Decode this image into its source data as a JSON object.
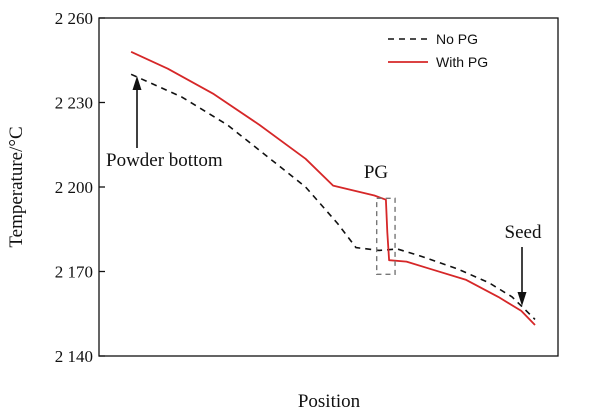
{
  "chart_data": {
    "type": "line",
    "xlabel": "Position",
    "ylabel": "Temperature/°C",
    "ylim": [
      2140,
      2260
    ],
    "xlim": [
      0,
      1
    ],
    "yticks": [
      2140,
      2170,
      2200,
      2230,
      2260
    ],
    "ytick_labels": [
      "2 140",
      "2 170",
      "2 200",
      "2 230",
      "2 260"
    ],
    "grid": false,
    "legend_position": "top-right",
    "series": [
      {
        "name": "No PG",
        "color": "#111111",
        "style": "dashed",
        "points": [
          [
            0.07,
            2240
          ],
          [
            0.18,
            2232
          ],
          [
            0.28,
            2222
          ],
          [
            0.35,
            2213
          ],
          [
            0.45,
            2200
          ],
          [
            0.52,
            2187
          ],
          [
            0.56,
            2178.5
          ],
          [
            0.61,
            2177.5
          ],
          [
            0.65,
            2178
          ],
          [
            0.7,
            2175.5
          ],
          [
            0.78,
            2171
          ],
          [
            0.85,
            2166
          ],
          [
            0.9,
            2161
          ],
          [
            0.95,
            2153
          ]
        ]
      },
      {
        "name": "With PG",
        "color": "#d62728",
        "style": "solid",
        "points": [
          [
            0.07,
            2248
          ],
          [
            0.15,
            2242
          ],
          [
            0.25,
            2233
          ],
          [
            0.35,
            2222
          ],
          [
            0.45,
            2210
          ],
          [
            0.51,
            2200.5
          ],
          [
            0.6,
            2197
          ],
          [
            0.625,
            2195.5
          ],
          [
            0.628,
            2184
          ],
          [
            0.632,
            2174
          ],
          [
            0.67,
            2173.5
          ],
          [
            0.72,
            2171
          ],
          [
            0.8,
            2167
          ],
          [
            0.87,
            2161
          ],
          [
            0.92,
            2156
          ],
          [
            0.95,
            2151
          ]
        ]
      }
    ],
    "annotations": [
      {
        "text": "Powder bottom",
        "arrow_to": [
          0.07,
          2240
        ]
      },
      {
        "text": "PG",
        "box": {
          "x": [
            0.605,
            0.645
          ],
          "y": [
            2169,
            2196
          ]
        }
      },
      {
        "text": "Seed",
        "arrow_to": [
          0.95,
          2153
        ]
      }
    ]
  }
}
